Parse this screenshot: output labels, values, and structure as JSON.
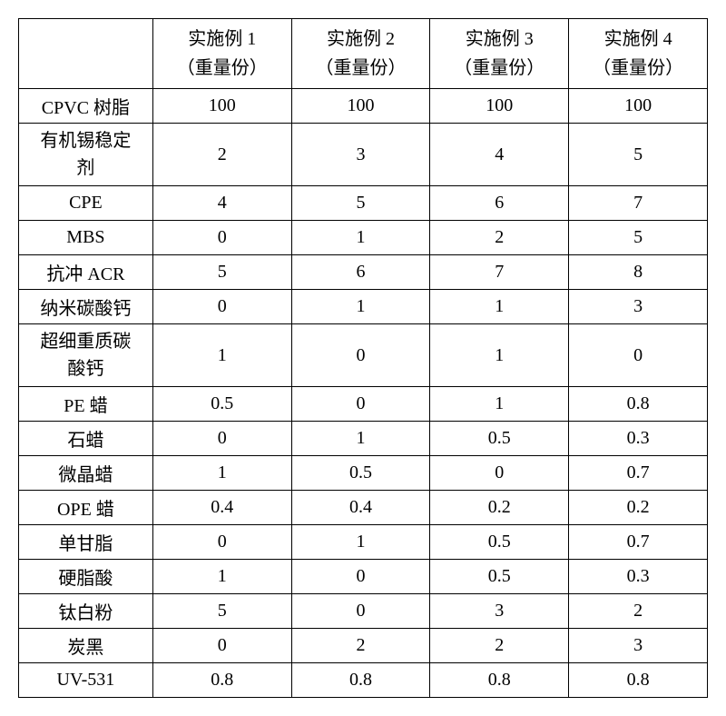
{
  "table": {
    "columns": [
      {
        "line1": "实施例 1",
        "line2": "（重量份）"
      },
      {
        "line1": "实施例 2",
        "line2": "（重量份）"
      },
      {
        "line1": "实施例 3",
        "line2": "（重量份）"
      },
      {
        "line1": "实施例 4",
        "line2": "（重量份）"
      }
    ],
    "rows": [
      {
        "label": "CPVC 树脂",
        "values": [
          "100",
          "100",
          "100",
          "100"
        ],
        "multiline": false
      },
      {
        "label": "有机锡稳定\n剂",
        "values": [
          "2",
          "3",
          "4",
          "5"
        ],
        "multiline": true
      },
      {
        "label": "CPE",
        "values": [
          "4",
          "5",
          "6",
          "7"
        ],
        "multiline": false
      },
      {
        "label": "MBS",
        "values": [
          "0",
          "1",
          "2",
          "5"
        ],
        "multiline": false
      },
      {
        "label": "抗冲 ACR",
        "values": [
          "5",
          "6",
          "7",
          "8"
        ],
        "multiline": false
      },
      {
        "label": "纳米碳酸钙",
        "values": [
          "0",
          "1",
          "1",
          "3"
        ],
        "multiline": false
      },
      {
        "label": "超细重质碳\n酸钙",
        "values": [
          "1",
          "0",
          "1",
          "0"
        ],
        "multiline": true
      },
      {
        "label": "PE 蜡",
        "values": [
          "0.5",
          "0",
          "1",
          "0.8"
        ],
        "multiline": false
      },
      {
        "label": "石蜡",
        "values": [
          "0",
          "1",
          "0.5",
          "0.3"
        ],
        "multiline": false
      },
      {
        "label": "微晶蜡",
        "values": [
          "1",
          "0.5",
          "0",
          "0.7"
        ],
        "multiline": false
      },
      {
        "label": "OPE 蜡",
        "values": [
          "0.4",
          "0.4",
          "0.2",
          "0.2"
        ],
        "multiline": false
      },
      {
        "label": "单甘脂",
        "values": [
          "0",
          "1",
          "0.5",
          "0.7"
        ],
        "multiline": false
      },
      {
        "label": "硬脂酸",
        "values": [
          "1",
          "0",
          "0.5",
          "0.3"
        ],
        "multiline": false
      },
      {
        "label": "钛白粉",
        "values": [
          "5",
          "0",
          "3",
          "2"
        ],
        "multiline": false
      },
      {
        "label": "炭黑",
        "values": [
          "0",
          "2",
          "2",
          "3"
        ],
        "multiline": false
      },
      {
        "label": "UV-531",
        "values": [
          "0.8",
          "0.8",
          "0.8",
          "0.8"
        ],
        "multiline": false
      }
    ]
  }
}
